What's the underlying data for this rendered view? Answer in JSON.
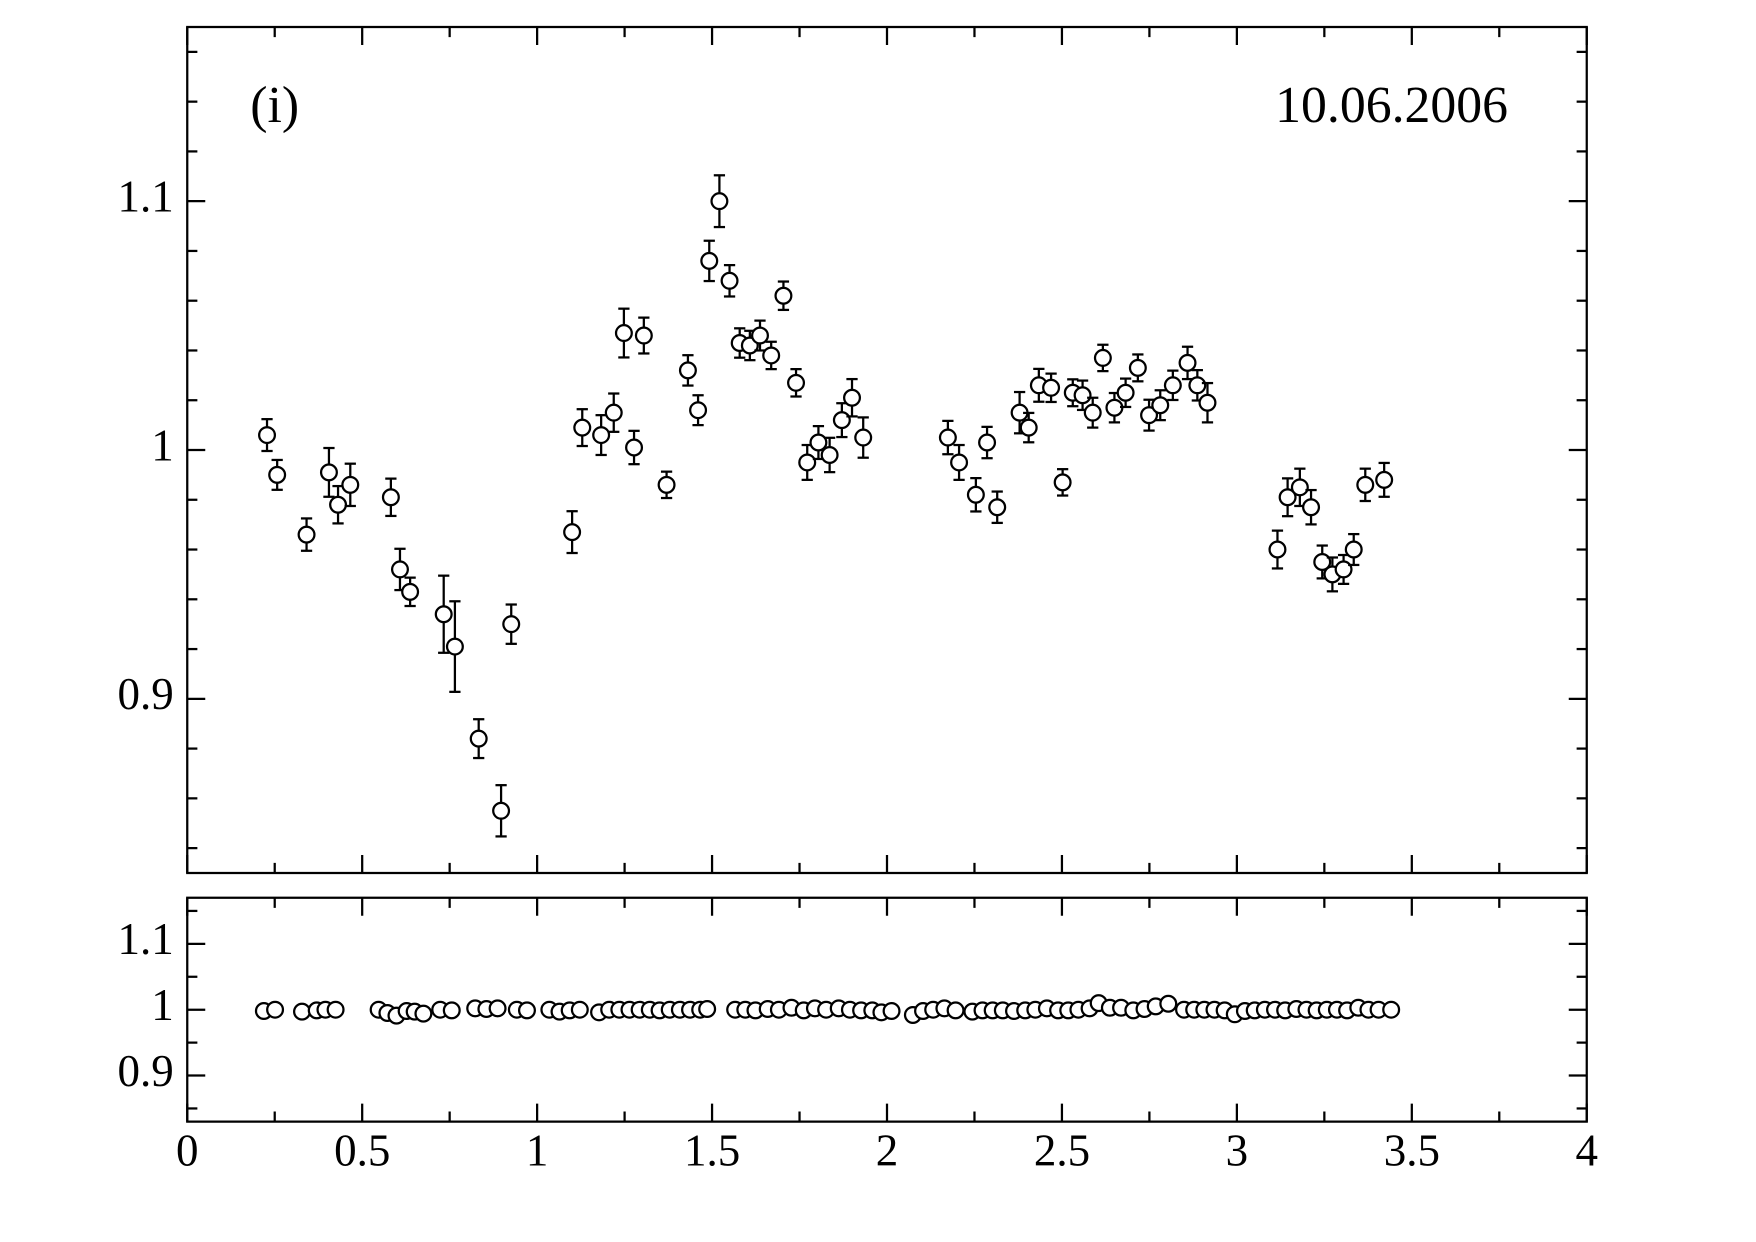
{
  "chart_data": [
    {
      "type": "scatter",
      "panel_label": "(i)",
      "date_label": "10.06.2006",
      "color": "#000000",
      "xlim": [
        0,
        4
      ],
      "xticks": [
        0,
        0.5,
        1,
        1.5,
        2,
        2.5,
        3,
        3.5,
        4
      ],
      "xticks_minor": [
        0.25,
        0.75,
        1.25,
        1.75,
        2.25,
        2.75,
        3.25,
        3.75
      ],
      "show_xtick_labels": false,
      "ylim": [
        0.83,
        1.17
      ],
      "yticks": [
        0.9,
        1,
        1.1
      ],
      "yticks_minor": [
        0.84,
        0.86,
        0.88,
        0.92,
        0.94,
        0.96,
        0.98,
        1.02,
        1.04,
        1.06,
        1.08,
        1.12,
        1.14,
        1.16
      ],
      "x": [
        0.228,
        0.257,
        0.341,
        0.405,
        0.431,
        0.466,
        0.582,
        0.608,
        0.637,
        0.733,
        0.765,
        0.833,
        0.897,
        0.926,
        1.1,
        1.129,
        1.183,
        1.219,
        1.248,
        1.277,
        1.305,
        1.37,
        1.431,
        1.46,
        1.492,
        1.521,
        1.55,
        1.579,
        1.608,
        1.637,
        1.669,
        1.704,
        1.74,
        1.772,
        1.804,
        1.836,
        1.871,
        1.9,
        1.932,
        2.174,
        2.206,
        2.254,
        2.286,
        2.315,
        2.379,
        2.405,
        2.434,
        2.469,
        2.502,
        2.531,
        2.559,
        2.588,
        2.617,
        2.65,
        2.682,
        2.717,
        2.749,
        2.781,
        2.817,
        2.859,
        2.887,
        2.916,
        3.116,
        3.145,
        3.18,
        3.212,
        3.244,
        3.273,
        3.305,
        3.334,
        3.367,
        3.421
      ],
      "values": [
        1.006,
        0.99,
        0.966,
        0.991,
        0.978,
        0.986,
        0.981,
        0.952,
        0.943,
        0.934,
        0.921,
        0.884,
        0.855,
        0.93,
        0.967,
        1.009,
        1.006,
        1.015,
        1.047,
        1.001,
        1.046,
        0.986,
        1.032,
        1.016,
        1.076,
        1.1,
        1.068,
        1.043,
        1.042,
        1.046,
        1.038,
        1.062,
        1.027,
        0.995,
        1.003,
        0.998,
        1.012,
        1.021,
        1.005,
        1.005,
        0.995,
        0.982,
        1.003,
        0.977,
        1.015,
        1.009,
        1.026,
        1.025,
        0.987,
        1.023,
        1.022,
        1.015,
        1.037,
        1.017,
        1.023,
        1.033,
        1.014,
        1.018,
        1.026,
        1.035,
        1.026,
        1.019,
        0.96,
        0.981,
        0.985,
        0.977,
        0.955,
        0.95,
        0.952,
        0.96,
        0.986,
        0.988
      ],
      "errors": [
        0.0064,
        0.006,
        0.0065,
        0.0098,
        0.0075,
        0.0085,
        0.0075,
        0.0083,
        0.0057,
        0.0155,
        0.0182,
        0.0078,
        0.0103,
        0.0079,
        0.0084,
        0.0074,
        0.008,
        0.0077,
        0.0098,
        0.0067,
        0.0072,
        0.0053,
        0.0061,
        0.006,
        0.0081,
        0.0104,
        0.0063,
        0.0059,
        0.0059,
        0.006,
        0.0055,
        0.0057,
        0.0055,
        0.007,
        0.0066,
        0.0069,
        0.0068,
        0.0075,
        0.0081,
        0.0067,
        0.007,
        0.0067,
        0.0063,
        0.0063,
        0.0083,
        0.0059,
        0.0066,
        0.0057,
        0.0053,
        0.0054,
        0.0059,
        0.006,
        0.0053,
        0.0059,
        0.0057,
        0.0054,
        0.0062,
        0.006,
        0.0059,
        0.0065,
        0.0061,
        0.0079,
        0.0076,
        0.0076,
        0.0075,
        0.0069,
        0.0066,
        0.0068,
        0.0058,
        0.0062,
        0.0065,
        0.0068
      ]
    },
    {
      "type": "scatter",
      "color": "#000000",
      "xlim": [
        0,
        4
      ],
      "xticks": [
        0,
        0.5,
        1,
        1.5,
        2,
        2.5,
        3,
        3.5,
        4
      ],
      "xticks_minor": [
        0.25,
        0.75,
        1.25,
        1.75,
        2.25,
        2.75,
        3.25,
        3.75
      ],
      "show_xtick_labels": true,
      "ylim": [
        0.83,
        1.17
      ],
      "yticks": [
        0.9,
        1,
        1.1
      ],
      "yticks_minor": [
        0.85,
        0.95,
        1.05,
        1.15
      ],
      "x": [
        0.219,
        0.251,
        0.328,
        0.37,
        0.395,
        0.424,
        0.547,
        0.572,
        0.598,
        0.627,
        0.65,
        0.675,
        0.723,
        0.756,
        0.823,
        0.855,
        0.887,
        0.942,
        0.971,
        1.035,
        1.064,
        1.093,
        1.122,
        1.177,
        1.206,
        1.235,
        1.264,
        1.293,
        1.322,
        1.35,
        1.379,
        1.408,
        1.437,
        1.466,
        1.486,
        1.566,
        1.595,
        1.624,
        1.659,
        1.691,
        1.727,
        1.762,
        1.794,
        1.826,
        1.862,
        1.894,
        1.926,
        1.958,
        1.984,
        2.013,
        2.074,
        2.103,
        2.132,
        2.164,
        2.196,
        2.244,
        2.273,
        2.302,
        2.331,
        2.363,
        2.395,
        2.424,
        2.457,
        2.489,
        2.518,
        2.547,
        2.579,
        2.605,
        2.637,
        2.669,
        2.704,
        2.736,
        2.768,
        2.804,
        2.849,
        2.878,
        2.907,
        2.936,
        2.965,
        2.994,
        3.023,
        3.051,
        3.08,
        3.109,
        3.138,
        3.17,
        3.199,
        3.228,
        3.257,
        3.286,
        3.315,
        3.347,
        3.376,
        3.405,
        3.441
      ],
      "values": [
        0.998,
        1.0,
        0.997,
        0.999,
        1.0,
        1.0,
        1.0,
        0.995,
        0.991,
        0.998,
        0.997,
        0.994,
        1.0,
        0.999,
        1.002,
        1.001,
        1.002,
        1.0,
        0.999,
        1.0,
        0.997,
        0.999,
        1.0,
        0.996,
        1.0,
        1.0,
        1.0,
        1.0,
        1.0,
        0.999,
        1.0,
        1.0,
        1.0,
        1.0,
        1.001,
        1.0,
        1.0,
        0.999,
        1.001,
        1.0,
        1.003,
        0.999,
        1.002,
        1.0,
        1.002,
        1.0,
        0.999,
        0.999,
        0.996,
        0.998,
        0.992,
        0.998,
        1.0,
        1.002,
        0.999,
        0.997,
        0.999,
        0.999,
        0.999,
        0.998,
        0.999,
        1.0,
        1.002,
        0.999,
        0.999,
        1.0,
        1.002,
        1.01,
        1.003,
        1.003,
        0.999,
        1.001,
        1.005,
        1.009,
        1.0,
        1.0,
        1.0,
        1.0,
        0.999,
        0.993,
        0.998,
        0.999,
        1.0,
        1.0,
        0.999,
        1.001,
        1.0,
        0.999,
        1.0,
        1.0,
        0.999,
        1.003,
        1.0,
        1.0,
        1.0
      ],
      "errors": [
        0.003,
        0.003,
        0.003,
        0.003,
        0.003,
        0.003,
        0.003,
        0.003,
        0.003,
        0.003,
        0.003,
        0.007,
        0.003,
        0.003,
        0.003,
        0.003,
        0.003,
        0.003,
        0.003,
        0.003,
        0.003,
        0.003,
        0.003,
        0.003,
        0.003,
        0.003,
        0.003,
        0.003,
        0.003,
        0.003,
        0.003,
        0.003,
        0.003,
        0.003,
        0.003,
        0.003,
        0.003,
        0.003,
        0.003,
        0.003,
        0.003,
        0.003,
        0.003,
        0.003,
        0.003,
        0.003,
        0.003,
        0.003,
        0.003,
        0.003,
        0.003,
        0.003,
        0.003,
        0.003,
        0.003,
        0.003,
        0.003,
        0.003,
        0.003,
        0.003,
        0.003,
        0.003,
        0.003,
        0.003,
        0.003,
        0.003,
        0.003,
        0.003,
        0.003,
        0.003,
        0.003,
        0.003,
        0.003,
        0.003,
        0.003,
        0.003,
        0.003,
        0.003,
        0.003,
        0.003,
        0.003,
        0.003,
        0.003,
        0.003,
        0.003,
        0.003,
        0.003,
        0.003,
        0.003,
        0.003,
        0.003,
        0.003,
        0.003,
        0.003,
        0.003
      ]
    }
  ]
}
